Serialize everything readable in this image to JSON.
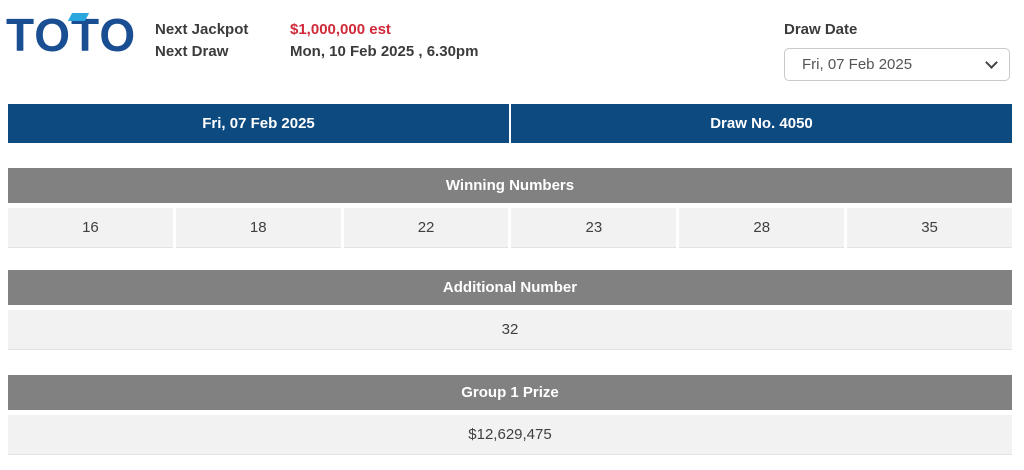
{
  "header": {
    "logo_text": "TOTO",
    "next_jackpot_label": "Next Jackpot",
    "next_jackpot_value": "$1,000,000 est",
    "next_draw_label": "Next Draw",
    "next_draw_value": "Mon, 10 Feb 2025 , 6.30pm",
    "draw_date_label": "Draw Date",
    "draw_date_selected": "Fri, 07 Feb 2025"
  },
  "results": {
    "draw_date": "Fri, 07 Feb 2025",
    "draw_no": "Draw No. 4050",
    "winning_numbers_label": "Winning Numbers",
    "winning_numbers": [
      "16",
      "18",
      "22",
      "23",
      "28",
      "35"
    ],
    "additional_number_label": "Additional Number",
    "additional_number": "32",
    "group1_prize_label": "Group 1 Prize",
    "group1_prize_value": "$12,629,475"
  },
  "colors": {
    "logo_navy": "#1a4e92",
    "logo_accent_blue": "#2aa7df",
    "jackpot_red": "#d0293a",
    "header_bar_blue": "#0d4a80",
    "section_bar_gray": "#818181",
    "value_row_gray": "#f2f2f2",
    "text_dark": "#3b3b3b"
  }
}
